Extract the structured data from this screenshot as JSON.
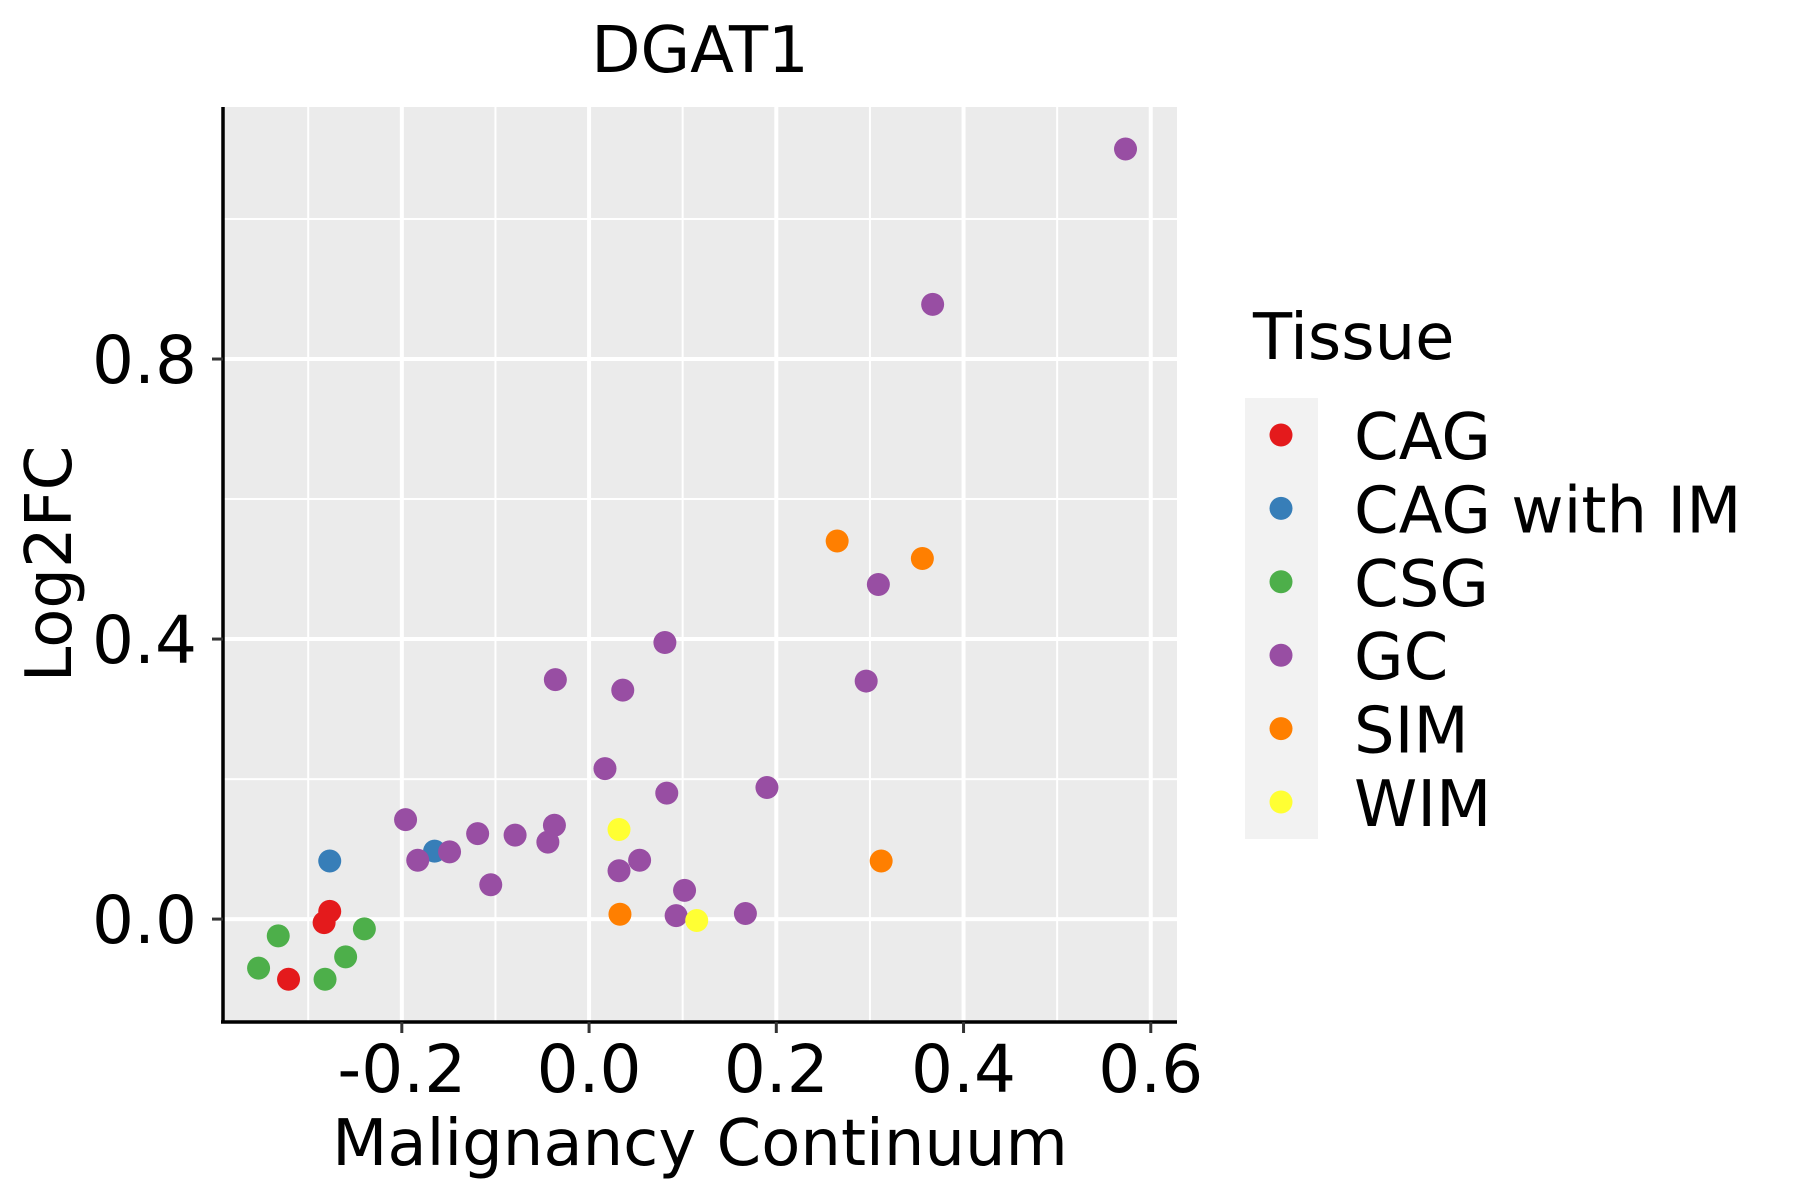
{
  "chart_data": {
    "type": "scatter",
    "title": "DGAT1",
    "xlabel": "Malignancy Continuum",
    "ylabel": "Log2FC",
    "xlim": [
      -0.391,
      0.628
    ],
    "ylim": [
      -0.147,
      1.16
    ],
    "x_ticks": [
      -0.2,
      0.0,
      0.2,
      0.4,
      0.6
    ],
    "x_tick_labels": [
      "-0.2",
      "0.0",
      "0.2",
      "0.4",
      "0.6"
    ],
    "x_minor": [
      -0.3,
      -0.1,
      0.1,
      0.3,
      0.5
    ],
    "y_ticks": [
      0.0,
      0.4,
      0.8
    ],
    "y_tick_labels": [
      "0.0",
      "0.4",
      "0.8"
    ],
    "y_minor": [
      0.2,
      0.6,
      1.0
    ],
    "grid": true,
    "panel_background": "#EBEBEB",
    "legend": {
      "title": "Tissue",
      "position": "right",
      "key_background": "#F2F2F2"
    },
    "series": [
      {
        "name": "CAG",
        "color": "#E41A1C",
        "points": [
          [
            -0.277,
            0.011
          ],
          [
            -0.283,
            -0.005
          ],
          [
            -0.321,
            -0.086
          ]
        ]
      },
      {
        "name": "CAG with IM",
        "color": "#377EB8",
        "points": [
          [
            -0.277,
            0.083
          ],
          [
            -0.165,
            0.097
          ]
        ]
      },
      {
        "name": "CSG",
        "color": "#4DAF4A",
        "points": [
          [
            -0.332,
            -0.024
          ],
          [
            -0.353,
            -0.07
          ],
          [
            -0.24,
            -0.014
          ],
          [
            -0.26,
            -0.054
          ],
          [
            -0.282,
            -0.086
          ]
        ]
      },
      {
        "name": "GC",
        "color": "#984EA3",
        "points": [
          [
            0.573,
            1.1
          ],
          [
            0.367,
            0.878
          ],
          [
            0.309,
            0.478
          ],
          [
            0.296,
            0.34
          ],
          [
            0.081,
            0.395
          ],
          [
            -0.036,
            0.342
          ],
          [
            0.036,
            0.327
          ],
          [
            0.017,
            0.215
          ],
          [
            0.083,
            0.18
          ],
          [
            0.19,
            0.188
          ],
          [
            -0.196,
            0.142
          ],
          [
            -0.183,
            0.084
          ],
          [
            -0.149,
            0.096
          ],
          [
            -0.119,
            0.122
          ],
          [
            -0.105,
            0.049
          ],
          [
            -0.079,
            0.12
          ],
          [
            -0.037,
            0.134
          ],
          [
            -0.044,
            0.11
          ],
          [
            0.054,
            0.084
          ],
          [
            0.032,
            0.069
          ],
          [
            0.102,
            0.041
          ],
          [
            0.093,
            0.005
          ],
          [
            0.167,
            0.008
          ]
        ]
      },
      {
        "name": "SIM",
        "color": "#FF7F00",
        "points": [
          [
            0.265,
            0.54
          ],
          [
            0.356,
            0.515
          ],
          [
            0.312,
            0.083
          ],
          [
            0.033,
            0.007
          ]
        ]
      },
      {
        "name": "WIM",
        "color": "#FFFF33",
        "points": [
          [
            0.032,
            0.128
          ],
          [
            0.115,
            -0.002
          ]
        ]
      }
    ]
  }
}
